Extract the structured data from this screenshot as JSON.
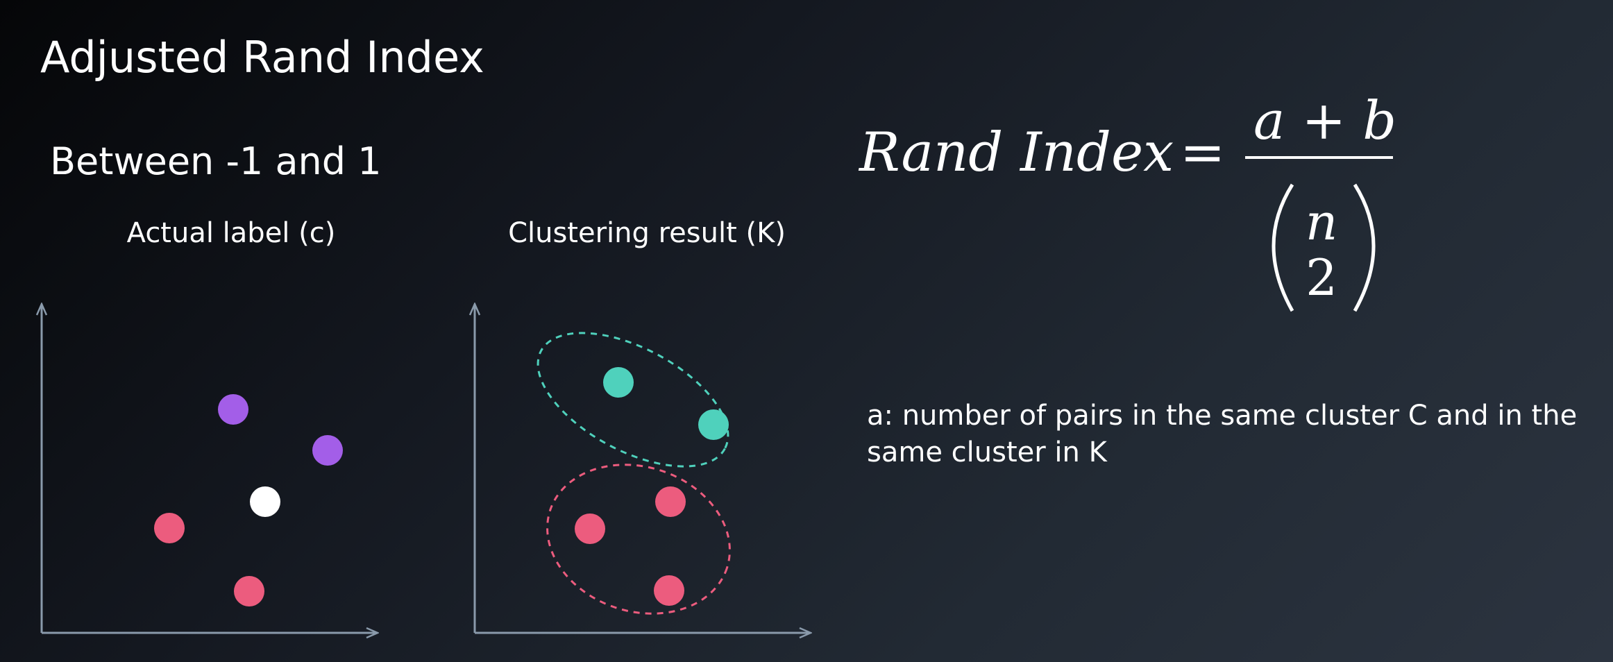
{
  "title": "Adjusted Rand Index",
  "subtitle": "Between -1 and 1",
  "panels": {
    "actual": {
      "label": "Actual label (c)",
      "points": [
        {
          "color": "#a35ee8",
          "name": "purple-point"
        },
        {
          "color": "#a35ee8",
          "name": "purple-point"
        },
        {
          "color": "#ffffff",
          "name": "white-point"
        },
        {
          "color": "#ec5c7e",
          "name": "pink-point"
        },
        {
          "color": "#ec5c7e",
          "name": "pink-point"
        }
      ]
    },
    "cluster": {
      "label": "Clustering result (K)",
      "clusters": [
        {
          "color": "#4fd1bc",
          "name": "teal-cluster"
        },
        {
          "color": "#ec5c7e",
          "name": "pink-cluster"
        }
      ]
    }
  },
  "formula": {
    "lhs": "Rand Index",
    "equals": "=",
    "numerator": "a + b",
    "binom_top": "n",
    "binom_bottom": "2"
  },
  "definition": "a: number of pairs in the same cluster C and in the same cluster in K",
  "colors": {
    "axis": "#8a9aab",
    "purple": "#a35ee8",
    "pink": "#ec5c7e",
    "teal": "#4fd1bc",
    "white": "#ffffff"
  }
}
